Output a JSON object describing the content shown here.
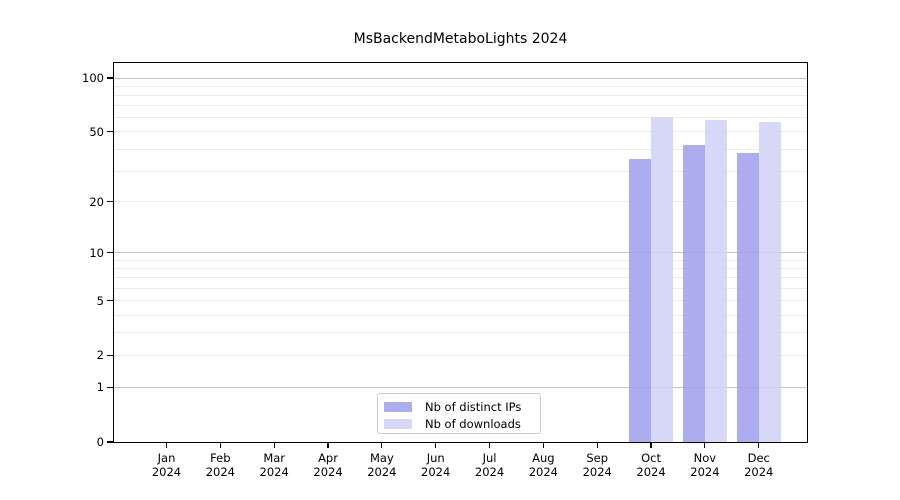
{
  "title": "MsBackendMetaboLights 2024",
  "legend": {
    "items": [
      {
        "label": "Nb of distinct IPs",
        "color": "#a0a0ee"
      },
      {
        "label": "Nb of downloads",
        "color": "#d2d2f6"
      }
    ]
  },
  "y_axis": {
    "scale": "log1p",
    "tick_labels": [
      "100",
      "50",
      "20",
      "10",
      "5",
      "2",
      "1",
      "0"
    ],
    "tick_values": [
      100,
      50,
      20,
      10,
      5,
      2,
      1,
      0
    ],
    "minor_gridlines": [
      2,
      3,
      4,
      5,
      6,
      7,
      8,
      9,
      20,
      30,
      40,
      50,
      60,
      70,
      80,
      90
    ],
    "major_gridlines": [
      1,
      10,
      100
    ]
  },
  "chart_data": {
    "type": "bar",
    "title": "MsBackendMetaboLights 2024",
    "categories": [
      "Jan 2024",
      "Feb 2024",
      "Mar 2024",
      "Apr 2024",
      "May 2024",
      "Jun 2024",
      "Jul 2024",
      "Aug 2024",
      "Sep 2024",
      "Oct 2024",
      "Nov 2024",
      "Dec 2024"
    ],
    "series": [
      {
        "name": "Nb of distinct IPs",
        "color": "#a0a0ee",
        "values": [
          null,
          null,
          null,
          null,
          null,
          null,
          null,
          null,
          null,
          35,
          42,
          38
        ]
      },
      {
        "name": "Nb of downloads",
        "color": "#d2d2f6",
        "values": [
          null,
          null,
          null,
          null,
          null,
          null,
          null,
          null,
          null,
          61,
          58,
          57
        ]
      }
    ],
    "xlabel": "",
    "ylabel": "",
    "y_scale": "log1p",
    "ylim": [
      0,
      121
    ],
    "grid": "horizontal",
    "legend_position": "bottom-center-inside"
  }
}
